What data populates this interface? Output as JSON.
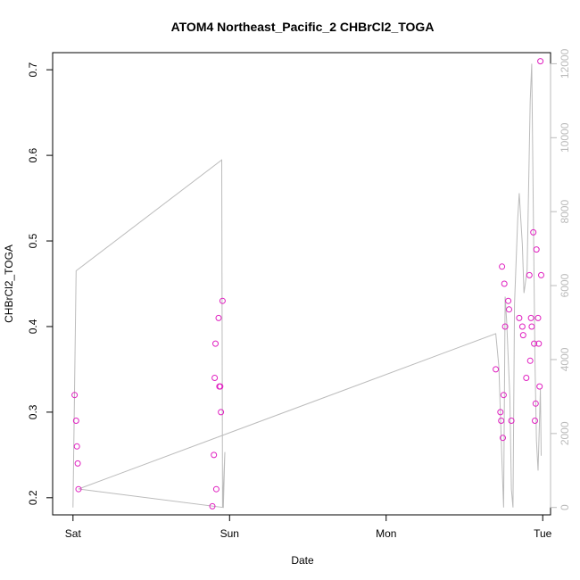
{
  "chart_data": {
    "type": "scatter",
    "title": "ATOM4 Northeast_Pacific_2 CHBrCl2_TOGA",
    "xlabel": "Date",
    "ylabel": "CHBrCl2_TOGA",
    "x_axis": {
      "kind": "time",
      "ticks": [
        {
          "day": 0,
          "label": "Sat"
        },
        {
          "day": 1,
          "label": "Sun"
        },
        {
          "day": 2,
          "label": "Mon"
        },
        {
          "day": 3,
          "label": "Tue"
        }
      ],
      "xlim_days": [
        -0.13,
        3.05
      ]
    },
    "y_left": {
      "ylim": [
        0.18,
        0.72
      ],
      "ticks": [
        0.2,
        0.3,
        0.4,
        0.5,
        0.6,
        0.7
      ],
      "tick_labels": [
        "0.2",
        "0.3",
        "0.4",
        "0.5",
        "0.6",
        "0.7"
      ],
      "color": "#000000"
    },
    "y_right": {
      "ylim": [
        -200,
        12300
      ],
      "ticks": [
        0,
        2000,
        4000,
        6000,
        8000,
        10000,
        12000
      ],
      "tick_labels": [
        "0",
        "2000",
        "4000",
        "6000",
        "8000",
        "10000",
        "12000"
      ],
      "color": "#bbbbbb"
    },
    "series": [
      {
        "kind": "points",
        "axis": "left",
        "color": "#e020c0",
        "marker": "open-circle",
        "points": [
          [
            0.01,
            0.32
          ],
          [
            0.02,
            0.29
          ],
          [
            0.025,
            0.26
          ],
          [
            0.03,
            0.24
          ],
          [
            0.035,
            0.21
          ],
          [
            0.89,
            0.19
          ],
          [
            0.9,
            0.25
          ],
          [
            0.905,
            0.34
          ],
          [
            0.91,
            0.38
          ],
          [
            0.915,
            0.21
          ],
          [
            0.93,
            0.41
          ],
          [
            0.935,
            0.33
          ],
          [
            0.94,
            0.33
          ],
          [
            0.945,
            0.3
          ],
          [
            0.955,
            0.43
          ],
          [
            2.7,
            0.35
          ],
          [
            2.73,
            0.3
          ],
          [
            2.735,
            0.29
          ],
          [
            2.74,
            0.47
          ],
          [
            2.745,
            0.27
          ],
          [
            2.75,
            0.32
          ],
          [
            2.755,
            0.45
          ],
          [
            2.76,
            0.4
          ],
          [
            2.78,
            0.43
          ],
          [
            2.785,
            0.42
          ],
          [
            2.8,
            0.29
          ],
          [
            2.85,
            0.41
          ],
          [
            2.87,
            0.4
          ],
          [
            2.875,
            0.39
          ],
          [
            2.895,
            0.34
          ],
          [
            2.915,
            0.46
          ],
          [
            2.92,
            0.36
          ],
          [
            2.925,
            0.41
          ],
          [
            2.93,
            0.4
          ],
          [
            2.94,
            0.51
          ],
          [
            2.945,
            0.38
          ],
          [
            2.95,
            0.29
          ],
          [
            2.955,
            0.31
          ],
          [
            2.96,
            0.49
          ],
          [
            2.97,
            0.41
          ],
          [
            2.975,
            0.38
          ],
          [
            2.98,
            0.33
          ],
          [
            2.985,
            0.71
          ],
          [
            2.99,
            0.46
          ]
        ]
      },
      {
        "kind": "line",
        "axis": "right",
        "color": "#bbbbbb",
        "points": [
          [
            0.0,
            0.0
          ],
          [
            0.02,
            6400
          ],
          [
            0.95,
            9400
          ],
          [
            0.955,
            0.0
          ],
          [
            0.97,
            1500
          ],
          [
            0.96,
            0.0
          ],
          [
            0.035,
            500
          ],
          [
            2.7,
            4700
          ],
          [
            2.72,
            3800
          ],
          [
            2.74,
            1200
          ],
          [
            2.75,
            0.0
          ],
          [
            2.76,
            5700
          ],
          [
            2.77,
            5000
          ],
          [
            2.78,
            4000
          ],
          [
            2.79,
            3000
          ],
          [
            2.8,
            500
          ],
          [
            2.81,
            0.0
          ],
          [
            2.82,
            5500
          ],
          [
            2.84,
            7800
          ],
          [
            2.85,
            8500
          ],
          [
            2.87,
            7100
          ],
          [
            2.88,
            5800
          ],
          [
            2.9,
            6400
          ],
          [
            2.92,
            11000
          ],
          [
            2.93,
            12000
          ],
          [
            2.94,
            8000
          ],
          [
            2.95,
            4000
          ],
          [
            2.96,
            1800
          ],
          [
            2.97,
            1000
          ],
          [
            2.985,
            3200
          ],
          [
            2.99,
            1400
          ]
        ]
      }
    ]
  }
}
